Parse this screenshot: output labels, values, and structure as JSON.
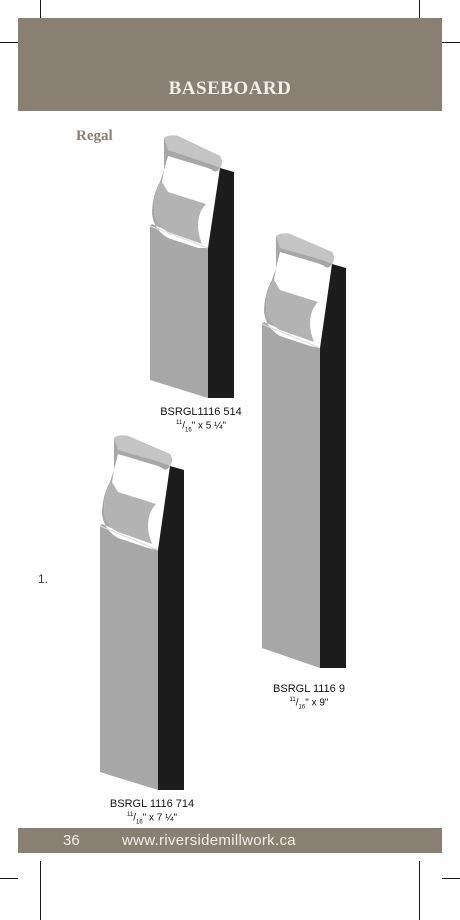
{
  "header": {
    "title": "BASEBOARD"
  },
  "section": {
    "label": "Regal"
  },
  "list_number": "1.",
  "products": [
    {
      "code": "BSRGL1116 514",
      "dim_num": "11",
      "dim_den": "16",
      "dim_rest": "x 5 ¼\""
    },
    {
      "code": "BSRGL 1116 9",
      "dim_num": "11",
      "dim_den": "16",
      "dim_rest": "x 9\""
    },
    {
      "code": "BSRGL 1116 714",
      "dim_num": "11",
      "dim_den": "16",
      "dim_rest": "x 7 ¼\""
    }
  ],
  "footer": {
    "page_number": "36",
    "website": "www.riversidemillwork.ca"
  },
  "colors": {
    "band": "#8a7f73",
    "band_text": "#f2efe9",
    "profile_face": "#a7a7a7",
    "profile_back": "#1c1c1c"
  }
}
